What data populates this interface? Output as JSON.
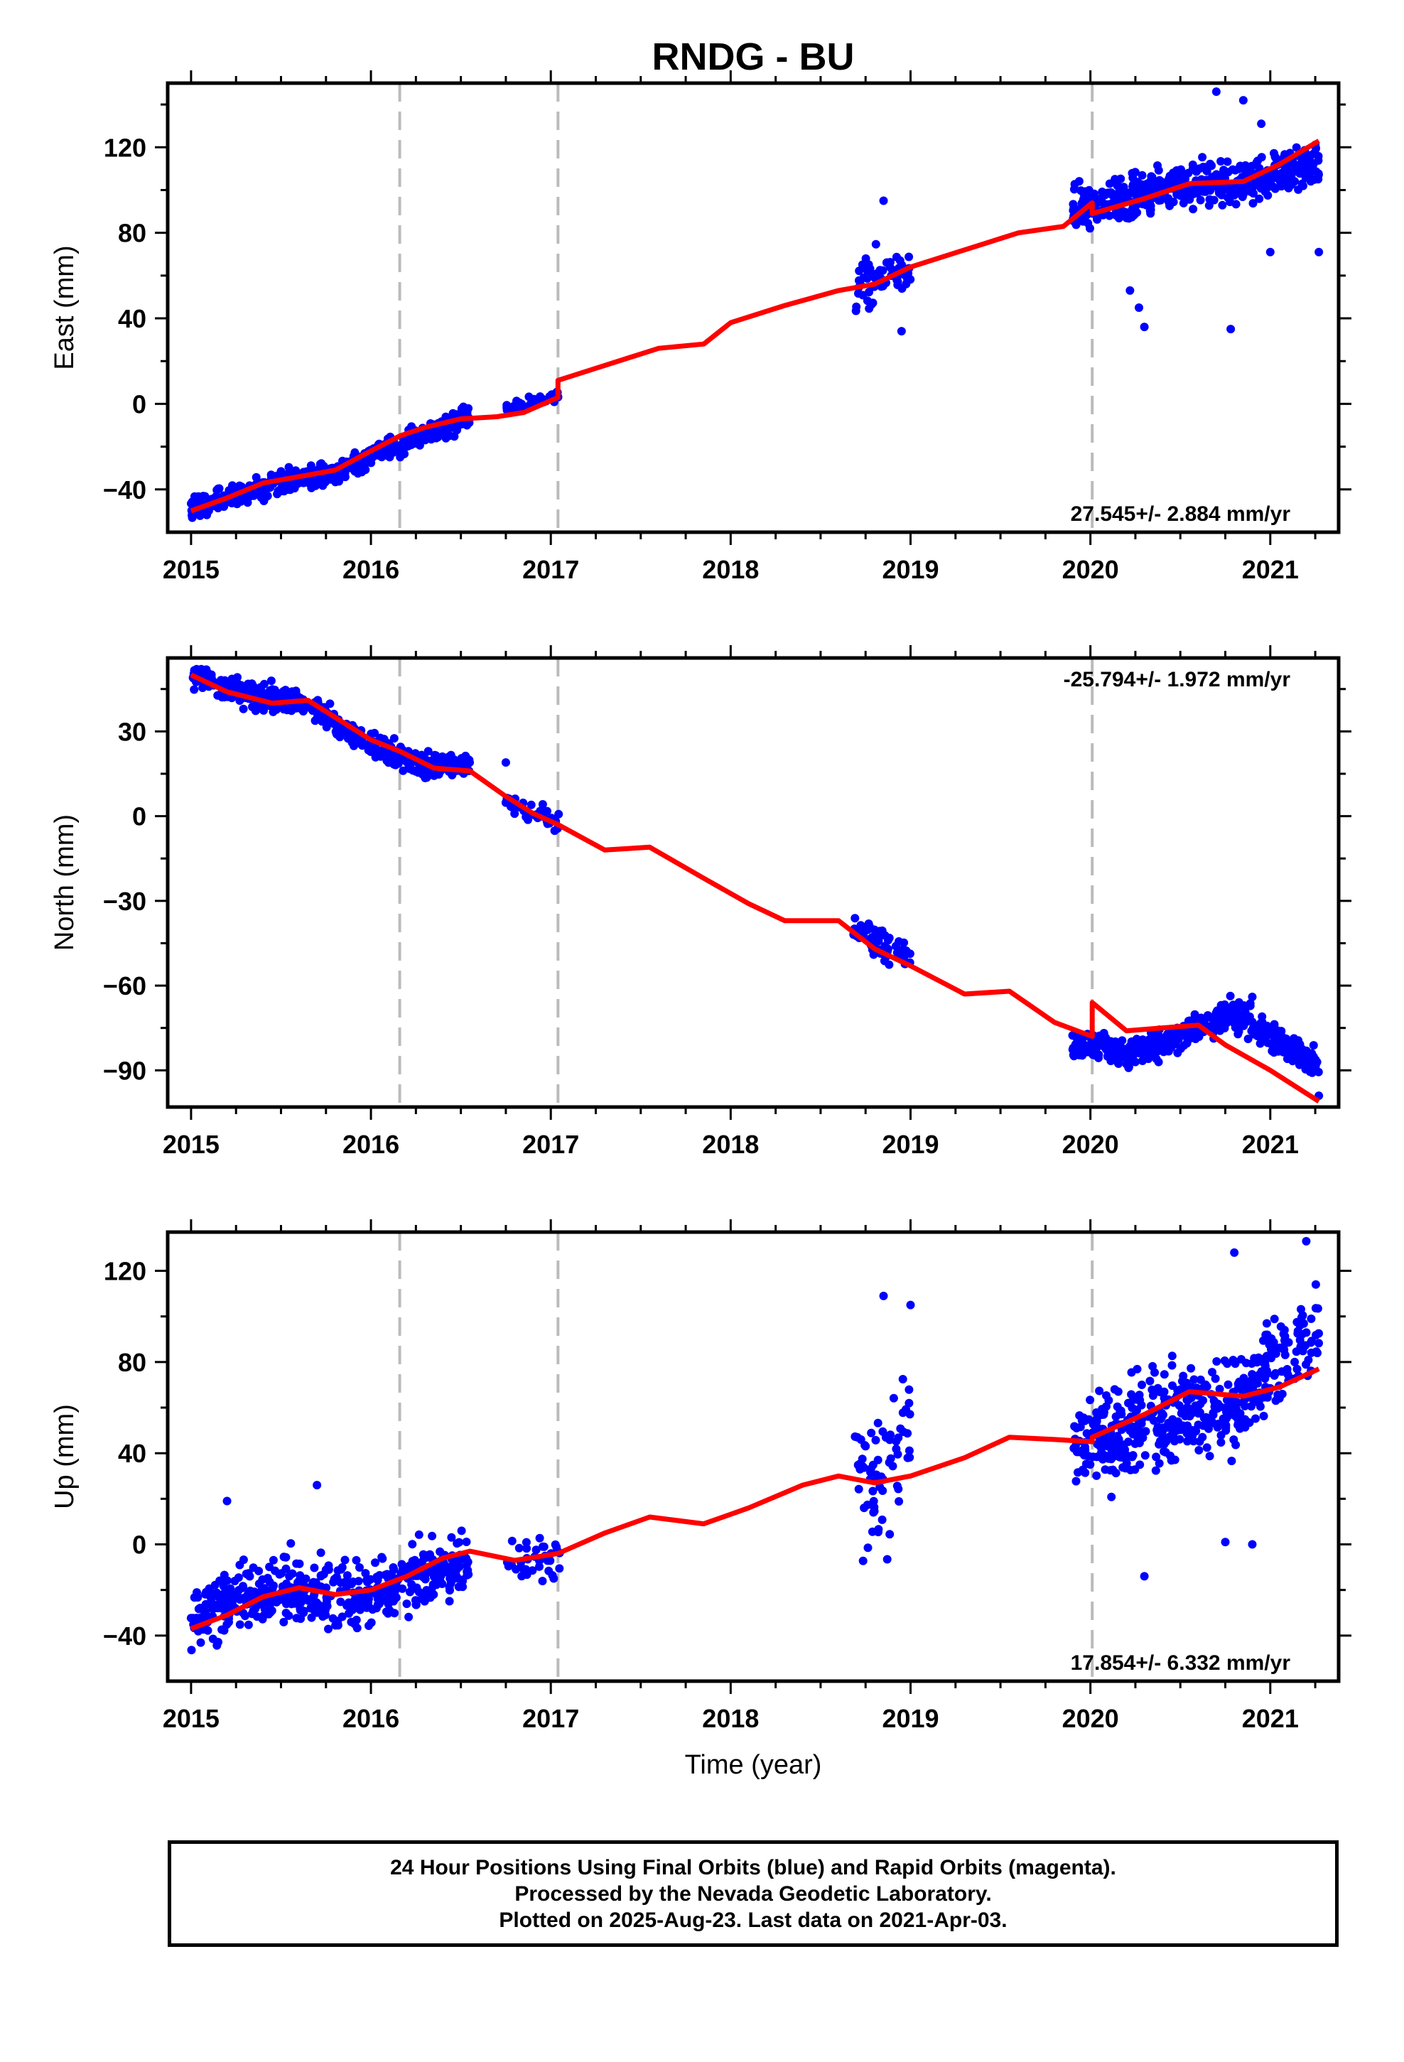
{
  "title": "RNDG - BU",
  "footer": {
    "line1": "24 Hour Positions Using Final Orbits (blue) and Rapid Orbits (magenta).",
    "line2": "Processed by the Nevada Geodetic Laboratory.",
    "line3": "Plotted on 2025-Aug-23. Last data on 2021-Apr-03."
  },
  "colors": {
    "data": "#0000ff",
    "model": "#ff0000",
    "equipment_change": "#bbbbbb"
  },
  "chart_data": [
    {
      "type": "scatter",
      "panel": "east",
      "ylabel": "East (mm)",
      "xlabel": "",
      "xlim": [
        2014.87,
        2021.38
      ],
      "ylim": [
        -60,
        150
      ],
      "xticks": [
        2015,
        2016,
        2017,
        2018,
        2019,
        2020,
        2021
      ],
      "yticks": [
        -40,
        0,
        40,
        80,
        120
      ],
      "rate_label": "27.545+/- 2.884 mm/yr",
      "rate_position": "bottom-right",
      "vlines": [
        2016.16,
        2017.04,
        2020.01
      ],
      "series": [
        {
          "kind": "observations-envelope",
          "segments": [
            {
              "x": [
                2015.0,
                2015.3,
                2015.6,
                2015.8,
                2016.0,
                2016.3,
                2016.55
              ],
              "y": [
                -48,
                -42,
                -35,
                -33,
                -24,
                -14,
                -6
              ],
              "spread": 5,
              "count": 520
            },
            {
              "x": [
                2016.75,
                2016.9,
                2017.05
              ],
              "y": [
                -3,
                0,
                4
              ],
              "spread": 3,
              "count": 40
            },
            {
              "x": [
                2018.68,
                2018.85,
                2019.0
              ],
              "y": [
                52,
                62,
                64
              ],
              "spread": 12,
              "count": 70
            },
            {
              "x": [
                2019.9,
                2020.2,
                2020.5,
                2020.8,
                2021.0,
                2021.27
              ],
              "y": [
                91,
                96,
                103,
                103,
                108,
                112
              ],
              "spread": 10,
              "count": 480
            }
          ],
          "outliers": [
            [
              2020.22,
              53
            ],
            [
              2020.27,
              45
            ],
            [
              2020.3,
              36
            ],
            [
              2020.78,
              35
            ],
            [
              2021.0,
              71
            ],
            [
              2021.27,
              71
            ],
            [
              2020.7,
              146
            ],
            [
              2020.85,
              142
            ],
            [
              2020.95,
              131
            ],
            [
              2018.95,
              34
            ],
            [
              2018.85,
              95
            ]
          ]
        },
        {
          "kind": "model",
          "x": [
            2015.0,
            2015.2,
            2015.4,
            2015.6,
            2015.8,
            2016.0,
            2016.16,
            2016.3,
            2016.5,
            2016.7,
            2016.85,
            2017.04,
            2017.04,
            2017.3,
            2017.6,
            2017.85,
            2018.0,
            2018.3,
            2018.6,
            2018.8,
            2019.0,
            2019.3,
            2019.6,
            2019.85,
            2020.01,
            2020.01,
            2020.3,
            2020.55,
            2020.85,
            2021.05,
            2021.27
          ],
          "y": [
            -50,
            -44,
            -37,
            -34,
            -31,
            -22,
            -15,
            -11,
            -7,
            -6,
            -4,
            3,
            11,
            18,
            26,
            28,
            38,
            46,
            53,
            56,
            64,
            72,
            80,
            83,
            94,
            89,
            96,
            103,
            104,
            112,
            123
          ]
        }
      ]
    },
    {
      "type": "scatter",
      "panel": "north",
      "ylabel": "North (mm)",
      "xlabel": "",
      "xlim": [
        2014.87,
        2021.38
      ],
      "ylim": [
        -103,
        56
      ],
      "xticks": [
        2015,
        2016,
        2017,
        2018,
        2019,
        2020,
        2021
      ],
      "yticks": [
        -90,
        -60,
        -30,
        0,
        30
      ],
      "rate_label": "-25.794+/- 1.972 mm/yr",
      "rate_position": "top-right",
      "vlines": [
        2016.16,
        2017.04,
        2020.01
      ],
      "series": [
        {
          "kind": "observations-envelope",
          "segments": [
            {
              "x": [
                2015.0,
                2015.3,
                2015.6,
                2015.8,
                2016.0,
                2016.3,
                2016.55
              ],
              "y": [
                50,
                43,
                41,
                33,
                25,
                18,
                18
              ],
              "spread": 4,
              "count": 520
            },
            {
              "x": [
                2016.75,
                2016.9,
                2017.05
              ],
              "y": [
                5,
                1,
                -2
              ],
              "spread": 3,
              "count": 40
            },
            {
              "x": [
                2018.68,
                2018.85,
                2019.0
              ],
              "y": [
                -38,
                -46,
                -50
              ],
              "spread": 5,
              "count": 70
            },
            {
              "x": [
                2019.9,
                2020.2,
                2020.5,
                2020.8,
                2021.0,
                2021.27
              ],
              "y": [
                -80,
                -84,
                -78,
                -70,
                -78,
                -88
              ],
              "spread": 5,
              "count": 480
            }
          ],
          "outliers": [
            [
              2016.75,
              19
            ],
            [
              2020.9,
              -64
            ],
            [
              2021.27,
              -99
            ]
          ]
        },
        {
          "kind": "model",
          "x": [
            2015.0,
            2015.2,
            2015.45,
            2015.65,
            2015.85,
            2016.0,
            2016.16,
            2016.35,
            2016.55,
            2016.75,
            2016.9,
            2017.04,
            2017.3,
            2017.55,
            2017.85,
            2018.1,
            2018.3,
            2018.6,
            2018.8,
            2019.0,
            2019.3,
            2019.55,
            2019.8,
            2020.01,
            2020.01,
            2020.2,
            2020.6,
            2020.75,
            2021.0,
            2021.27
          ],
          "y": [
            50,
            44,
            40,
            41,
            33,
            27,
            23,
            17,
            16,
            7,
            1,
            -3,
            -12,
            -11,
            -22,
            -31,
            -37,
            -37,
            -47,
            -53,
            -63,
            -62,
            -73,
            -78,
            -66,
            -76,
            -74,
            -81,
            -90,
            -101
          ]
        }
      ]
    },
    {
      "type": "scatter",
      "panel": "up",
      "ylabel": "Up (mm)",
      "xlabel": "Time (year)",
      "xlim": [
        2014.87,
        2021.38
      ],
      "ylim": [
        -60,
        137
      ],
      "xticks": [
        2015,
        2016,
        2017,
        2018,
        2019,
        2020,
        2021
      ],
      "yticks": [
        -40,
        0,
        40,
        80,
        120
      ],
      "rate_label": "17.854+/- 6.332 mm/yr",
      "rate_position": "bottom-right",
      "vlines": [
        2016.16,
        2017.04,
        2020.01
      ],
      "series": [
        {
          "kind": "observations-envelope",
          "segments": [
            {
              "x": [
                2015.0,
                2015.3,
                2015.6,
                2015.8,
                2016.0,
                2016.3,
                2016.55
              ],
              "y": [
                -32,
                -24,
                -20,
                -22,
                -22,
                -14,
                -6
              ],
              "spread": 14,
              "count": 520
            },
            {
              "x": [
                2016.75,
                2016.9,
                2017.05
              ],
              "y": [
                -8,
                -6,
                -4
              ],
              "spread": 9,
              "count": 40
            },
            {
              "x": [
                2018.68,
                2018.85,
                2019.0
              ],
              "y": [
                25,
                32,
                45
              ],
              "spread": 30,
              "count": 70
            },
            {
              "x": [
                2019.9,
                2020.2,
                2020.5,
                2020.8,
                2021.0,
                2021.27
              ],
              "y": [
                45,
                50,
                60,
                58,
                80,
                92
              ],
              "spread": 20,
              "count": 480
            }
          ],
          "outliers": [
            [
              2015.2,
              19
            ],
            [
              2015.7,
              26
            ],
            [
              2018.85,
              109
            ],
            [
              2019.0,
              105
            ],
            [
              2020.3,
              -14
            ],
            [
              2020.75,
              1
            ],
            [
              2020.9,
              0
            ],
            [
              2020.8,
              128
            ],
            [
              2021.2,
              133
            ]
          ]
        },
        {
          "kind": "model",
          "x": [
            2015.0,
            2015.2,
            2015.4,
            2015.6,
            2015.8,
            2016.0,
            2016.2,
            2016.4,
            2016.55,
            2016.8,
            2017.04,
            2017.3,
            2017.55,
            2017.85,
            2018.1,
            2018.4,
            2018.6,
            2018.8,
            2019.0,
            2019.3,
            2019.55,
            2019.8,
            2020.01,
            2020.01,
            2020.3,
            2020.55,
            2020.85,
            2021.05,
            2021.27
          ],
          "y": [
            -37,
            -31,
            -23,
            -19,
            -22,
            -20,
            -14,
            -6,
            -3,
            -7,
            -4,
            5,
            12,
            9,
            16,
            26,
            30,
            27,
            30,
            38,
            47,
            46,
            45,
            47,
            57,
            67,
            65,
            69,
            77
          ]
        }
      ]
    }
  ]
}
